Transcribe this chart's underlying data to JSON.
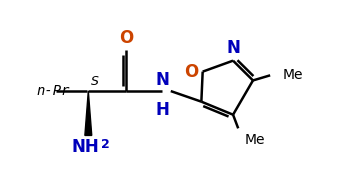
{
  "bg_color": "#ffffff",
  "atom_color": "#000000",
  "N_color": "#0000bb",
  "O_color": "#cc4400",
  "bond_color": "#000000",
  "bond_width": 1.8,
  "fig_width": 3.45,
  "fig_height": 1.89,
  "dpi": 100,
  "xlim": [
    0,
    10
  ],
  "ylim": [
    0,
    5.5
  ],
  "font_size_atom": 11,
  "font_size_label": 10,
  "font_size_small": 8
}
